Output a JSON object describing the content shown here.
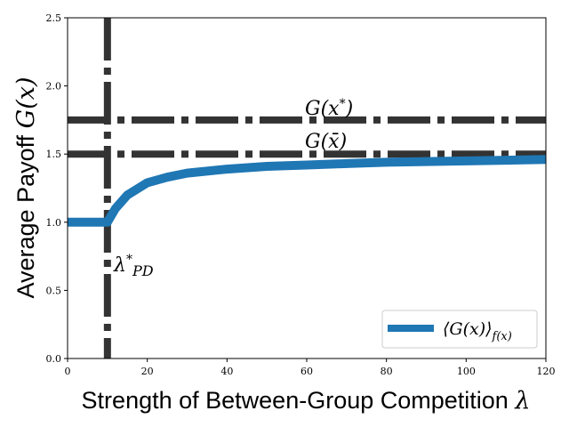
{
  "chart_data": {
    "type": "line",
    "xlabel": "Strength of Between-Group Competition",
    "xlabel_symbol": "λ",
    "ylabel": "Average Payoff",
    "ylabel_symbol": "G(x)",
    "xlim": [
      0,
      120
    ],
    "ylim": [
      0,
      2.5
    ],
    "xticks": [
      0,
      20,
      40,
      60,
      80,
      100,
      120
    ],
    "yticks": [
      0.0,
      0.5,
      1.0,
      1.5,
      2.0,
      2.5
    ],
    "xtick_labels": [
      "0",
      "20",
      "40",
      "60",
      "80",
      "100",
      "120"
    ],
    "ytick_labels": [
      "0.0",
      "0.5",
      "1.0",
      "1.5",
      "2.0",
      "2.5"
    ],
    "grid": false,
    "legend_position": "lower-right",
    "series": [
      {
        "name": "⟨G(x)⟩f(x)",
        "color": "#1f77b4",
        "points": [
          [
            0,
            1.0
          ],
          [
            10,
            1.0
          ],
          [
            12,
            1.1
          ],
          [
            15,
            1.2
          ],
          [
            20,
            1.29
          ],
          [
            25,
            1.33
          ],
          [
            30,
            1.36
          ],
          [
            40,
            1.39
          ],
          [
            50,
            1.41
          ],
          [
            60,
            1.42
          ],
          [
            70,
            1.43
          ],
          [
            80,
            1.44
          ],
          [
            90,
            1.445
          ],
          [
            100,
            1.45
          ],
          [
            110,
            1.455
          ],
          [
            120,
            1.46
          ]
        ]
      }
    ],
    "reference_lines": [
      {
        "orientation": "horizontal",
        "value": 1.75,
        "label": "G(x*)",
        "color": "#333333",
        "style": "dashdot"
      },
      {
        "orientation": "horizontal",
        "value": 1.5,
        "label": "G(x̄)",
        "color": "#333333",
        "style": "dashdot"
      },
      {
        "orientation": "vertical",
        "value": 10,
        "label": "λ*PD",
        "color": "#333333",
        "style": "dashdot"
      }
    ]
  }
}
